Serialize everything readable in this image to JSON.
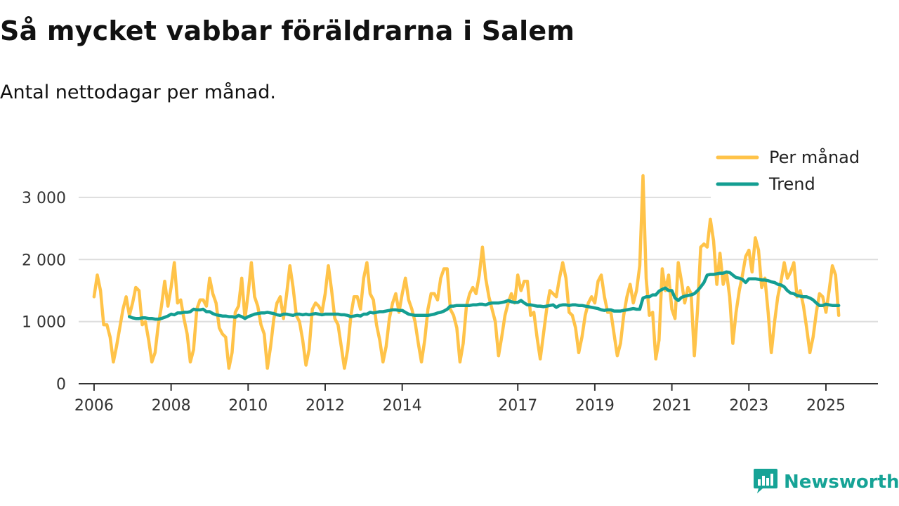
{
  "title": "Så mycket vabbar föräldrarna i Salem",
  "subtitle": "Antal nettodagar per månad.",
  "brand": {
    "name": "Newsworthy",
    "icon": "newsworthy-logo-icon"
  },
  "colors": {
    "monthly": "#FFC349",
    "trend": "#149E92",
    "grid": "#dddddd",
    "axis": "#333333"
  },
  "chart_data": {
    "type": "line",
    "title": "Så mycket vabbar föräldrarna i Salem",
    "subtitle": "Antal nettodagar per månad.",
    "xlabel": "",
    "ylabel": "",
    "xlim": [
      2005.6,
      2026.35
    ],
    "ylim": [
      0,
      3350
    ],
    "grid": true,
    "legend_position": "top-right",
    "x_ticks": [
      {
        "value": 2006,
        "label": "2006"
      },
      {
        "value": 2008,
        "label": "2008"
      },
      {
        "value": 2010,
        "label": "2010"
      },
      {
        "value": 2012,
        "label": "2012"
      },
      {
        "value": 2014,
        "label": "2014"
      },
      {
        "value": 2017,
        "label": "2017"
      },
      {
        "value": 2019,
        "label": "2019"
      },
      {
        "value": 2021,
        "label": "2021"
      },
      {
        "value": 2023,
        "label": "2023"
      },
      {
        "value": 2025,
        "label": "2025"
      }
    ],
    "y_ticks": [
      {
        "value": 0,
        "label": "0"
      },
      {
        "value": 1000,
        "label": "1 000"
      },
      {
        "value": 2000,
        "label": "2 000"
      },
      {
        "value": 3000,
        "label": "3 000"
      }
    ],
    "series": [
      {
        "name": "Per månad",
        "color": "#FFC349",
        "x": [
          2006.0,
          2006.083,
          2006.167,
          2006.25,
          2006.333,
          2006.417,
          2006.5,
          2006.583,
          2006.667,
          2006.75,
          2006.833,
          2006.917,
          2007.0,
          2007.083,
          2007.167,
          2007.25,
          2007.333,
          2007.417,
          2007.5,
          2007.583,
          2007.667,
          2007.75,
          2007.833,
          2007.917,
          2008.0,
          2008.083,
          2008.167,
          2008.25,
          2008.333,
          2008.417,
          2008.5,
          2008.583,
          2008.667,
          2008.75,
          2008.833,
          2008.917,
          2009.0,
          2009.083,
          2009.167,
          2009.25,
          2009.333,
          2009.417,
          2009.5,
          2009.583,
          2009.667,
          2009.75,
          2009.833,
          2009.917,
          2010.0,
          2010.083,
          2010.167,
          2010.25,
          2010.333,
          2010.417,
          2010.5,
          2010.583,
          2010.667,
          2010.75,
          2010.833,
          2010.917,
          2011.0,
          2011.083,
          2011.167,
          2011.25,
          2011.333,
          2011.417,
          2011.5,
          2011.583,
          2011.667,
          2011.75,
          2011.833,
          2011.917,
          2012.0,
          2012.083,
          2012.167,
          2012.25,
          2012.333,
          2012.417,
          2012.5,
          2012.583,
          2012.667,
          2012.75,
          2012.833,
          2012.917,
          2013.0,
          2013.083,
          2013.167,
          2013.25,
          2013.333,
          2013.417,
          2013.5,
          2013.583,
          2013.667,
          2013.75,
          2013.833,
          2013.917,
          2014.0,
          2014.083,
          2014.167,
          2014.25,
          2014.333,
          2014.417,
          2014.5,
          2014.583,
          2014.667,
          2014.75,
          2014.833,
          2014.917,
          2015.0,
          2015.083,
          2015.167,
          2015.25,
          2015.333,
          2015.417,
          2015.5,
          2015.583,
          2015.667,
          2015.75,
          2015.833,
          2015.917,
          2016.0,
          2016.083,
          2016.167,
          2016.25,
          2016.333,
          2016.417,
          2016.5,
          2016.583,
          2016.667,
          2016.75,
          2016.833,
          2016.917,
          2017.0,
          2017.083,
          2017.167,
          2017.25,
          2017.333,
          2017.417,
          2017.5,
          2017.583,
          2017.667,
          2017.75,
          2017.833,
          2017.917,
          2018.0,
          2018.083,
          2018.167,
          2018.25,
          2018.333,
          2018.417,
          2018.5,
          2018.583,
          2018.667,
          2018.75,
          2018.833,
          2018.917,
          2019.0,
          2019.083,
          2019.167,
          2019.25,
          2019.333,
          2019.417,
          2019.5,
          2019.583,
          2019.667,
          2019.75,
          2019.833,
          2019.917,
          2020.0,
          2020.083,
          2020.167,
          2020.25,
          2020.333,
          2020.417,
          2020.5,
          2020.583,
          2020.667,
          2020.75,
          2020.833,
          2020.917,
          2021.0,
          2021.083,
          2021.167,
          2021.25,
          2021.333,
          2021.417,
          2021.5,
          2021.583,
          2021.667,
          2021.75,
          2021.833,
          2021.917,
          2022.0,
          2022.083,
          2022.167,
          2022.25,
          2022.333,
          2022.417,
          2022.5,
          2022.583,
          2022.667,
          2022.75,
          2022.833,
          2022.917,
          2023.0,
          2023.083,
          2023.167,
          2023.25,
          2023.333,
          2023.417,
          2023.5,
          2023.583,
          2023.667,
          2023.75,
          2023.833,
          2023.917,
          2024.0,
          2024.083,
          2024.167,
          2024.25,
          2024.333,
          2024.417,
          2024.5,
          2024.583,
          2024.667,
          2024.75,
          2024.833,
          2024.917,
          2025.0,
          2025.083,
          2025.167,
          2025.25,
          2025.333
        ],
        "values": [
          1400,
          1750,
          1500,
          950,
          950,
          750,
          350,
          600,
          900,
          1200,
          1400,
          1100,
          1300,
          1550,
          1500,
          950,
          1000,
          700,
          350,
          500,
          950,
          1250,
          1650,
          1250,
          1550,
          1950,
          1300,
          1350,
          1050,
          800,
          350,
          550,
          1200,
          1350,
          1350,
          1250,
          1700,
          1450,
          1300,
          900,
          800,
          750,
          250,
          500,
          1150,
          1250,
          1700,
          1050,
          1450,
          1950,
          1400,
          1250,
          950,
          800,
          250,
          600,
          1050,
          1300,
          1400,
          1050,
          1450,
          1900,
          1550,
          1100,
          1000,
          700,
          300,
          550,
          1200,
          1300,
          1250,
          1150,
          1450,
          1900,
          1500,
          1050,
          950,
          600,
          250,
          550,
          1100,
          1400,
          1400,
          1200,
          1700,
          1950,
          1450,
          1350,
          950,
          700,
          350,
          600,
          1050,
          1300,
          1450,
          1150,
          1450,
          1700,
          1350,
          1200,
          1000,
          650,
          350,
          700,
          1200,
          1450,
          1450,
          1350,
          1700,
          1850,
          1850,
          1200,
          1100,
          900,
          350,
          650,
          1250,
          1450,
          1550,
          1450,
          1750,
          2200,
          1700,
          1400,
          1200,
          1000,
          450,
          750,
          1100,
          1300,
          1450,
          1300,
          1750,
          1500,
          1650,
          1650,
          1100,
          1150,
          750,
          400,
          800,
          1200,
          1500,
          1450,
          1400,
          1700,
          1950,
          1700,
          1150,
          1100,
          900,
          500,
          750,
          1100,
          1300,
          1400,
          1300,
          1650,
          1750,
          1400,
          1150,
          1150,
          800,
          450,
          650,
          1100,
          1400,
          1600,
          1300,
          1500,
          1900,
          3350,
          1700,
          1100,
          1150,
          400,
          700,
          1850,
          1500,
          1750,
          1200,
          1050,
          1950,
          1650,
          1300,
          1550,
          1450,
          450,
          1200,
          2200,
          2250,
          2200,
          2650,
          2300,
          1600,
          2100,
          1600,
          1800,
          1400,
          650,
          1150,
          1500,
          1750,
          2050,
          2150,
          1800,
          2350,
          2150,
          1550,
          1700,
          1150,
          500,
          1000,
          1400,
          1650,
          1950,
          1700,
          1800,
          1950,
          1400,
          1500,
          1250,
          900,
          500,
          750,
          1150,
          1450,
          1400,
          1150,
          1500,
          1900,
          1750,
          1100
        ]
      },
      {
        "name": "Trend",
        "color": "#149E92",
        "x": [
          2006.917,
          2007.0,
          2007.083,
          2007.167,
          2007.25,
          2007.333,
          2007.417,
          2007.5,
          2007.583,
          2007.667,
          2007.75,
          2007.833,
          2007.917,
          2008.0,
          2008.083,
          2008.167,
          2008.25,
          2008.333,
          2008.417,
          2008.5,
          2008.583,
          2008.667,
          2008.75,
          2008.833,
          2008.917,
          2009.0,
          2009.083,
          2009.167,
          2009.25,
          2009.333,
          2009.417,
          2009.5,
          2009.583,
          2009.667,
          2009.75,
          2009.833,
          2009.917,
          2010.0,
          2010.083,
          2010.167,
          2010.25,
          2010.333,
          2010.417,
          2010.5,
          2010.583,
          2010.667,
          2010.75,
          2010.833,
          2010.917,
          2011.0,
          2011.083,
          2011.167,
          2011.25,
          2011.333,
          2011.417,
          2011.5,
          2011.583,
          2011.667,
          2011.75,
          2011.833,
          2011.917,
          2012.0,
          2012.083,
          2012.167,
          2012.25,
          2012.333,
          2012.417,
          2012.5,
          2012.583,
          2012.667,
          2012.75,
          2012.833,
          2012.917,
          2013.0,
          2013.083,
          2013.167,
          2013.25,
          2013.333,
          2013.417,
          2013.5,
          2013.583,
          2013.667,
          2013.75,
          2013.833,
          2013.917,
          2014.0,
          2014.083,
          2014.167,
          2014.25,
          2014.333,
          2014.417,
          2014.5,
          2014.583,
          2014.667,
          2014.75,
          2014.833,
          2014.917,
          2015.0,
          2015.083,
          2015.167,
          2015.25,
          2015.333,
          2015.417,
          2015.5,
          2015.583,
          2015.667,
          2015.75,
          2015.833,
          2015.917,
          2016.0,
          2016.083,
          2016.167,
          2016.25,
          2016.333,
          2016.417,
          2016.5,
          2016.583,
          2016.667,
          2016.75,
          2016.833,
          2016.917,
          2017.0,
          2017.083,
          2017.167,
          2017.25,
          2017.333,
          2017.417,
          2017.5,
          2017.583,
          2017.667,
          2017.75,
          2017.833,
          2017.917,
          2018.0,
          2018.083,
          2018.167,
          2018.25,
          2018.333,
          2018.417,
          2018.5,
          2018.583,
          2018.667,
          2018.75,
          2018.833,
          2018.917,
          2019.0,
          2019.083,
          2019.167,
          2019.25,
          2019.333,
          2019.417,
          2019.5,
          2019.583,
          2019.667,
          2019.75,
          2019.833,
          2019.917,
          2020.0,
          2020.083,
          2020.167,
          2020.25,
          2020.333,
          2020.417,
          2020.5,
          2020.583,
          2020.667,
          2020.75,
          2020.833,
          2020.917,
          2021.0,
          2021.083,
          2021.167,
          2021.25,
          2021.333,
          2021.417,
          2021.5,
          2021.583,
          2021.667,
          2021.75,
          2021.833,
          2021.917,
          2022.0,
          2022.083,
          2022.167,
          2022.25,
          2022.333,
          2022.417,
          2022.5,
          2022.583,
          2022.667,
          2022.75,
          2022.833,
          2022.917,
          2023.0,
          2023.083,
          2023.167,
          2023.25,
          2023.333,
          2023.417,
          2023.5,
          2023.583,
          2023.667,
          2023.75,
          2023.833,
          2023.917,
          2024.0,
          2024.083,
          2024.167,
          2024.25,
          2024.333,
          2024.417,
          2024.5,
          2024.583,
          2024.667,
          2024.75,
          2024.833,
          2024.917,
          2025.0,
          2025.083,
          2025.167,
          2025.25,
          2025.333
        ],
        "values": [
          1080,
          1060,
          1050,
          1050,
          1060,
          1060,
          1050,
          1050,
          1040,
          1040,
          1050,
          1070,
          1090,
          1120,
          1110,
          1140,
          1140,
          1150,
          1150,
          1160,
          1200,
          1190,
          1190,
          1200,
          1160,
          1160,
          1130,
          1110,
          1100,
          1090,
          1090,
          1080,
          1080,
          1070,
          1100,
          1080,
          1050,
          1080,
          1100,
          1120,
          1130,
          1140,
          1140,
          1150,
          1140,
          1130,
          1110,
          1100,
          1120,
          1120,
          1110,
          1100,
          1120,
          1120,
          1110,
          1120,
          1110,
          1120,
          1130,
          1120,
          1110,
          1120,
          1120,
          1120,
          1120,
          1120,
          1110,
          1110,
          1100,
          1080,
          1090,
          1100,
          1090,
          1120,
          1120,
          1150,
          1140,
          1150,
          1160,
          1160,
          1170,
          1180,
          1190,
          1190,
          1180,
          1180,
          1150,
          1120,
          1110,
          1100,
          1100,
          1100,
          1100,
          1100,
          1110,
          1120,
          1140,
          1150,
          1170,
          1200,
          1250,
          1250,
          1260,
          1260,
          1260,
          1260,
          1260,
          1270,
          1270,
          1280,
          1280,
          1270,
          1290,
          1300,
          1300,
          1300,
          1310,
          1320,
          1340,
          1320,
          1310,
          1310,
          1340,
          1300,
          1270,
          1270,
          1260,
          1250,
          1250,
          1240,
          1250,
          1260,
          1270,
          1230,
          1260,
          1270,
          1270,
          1260,
          1270,
          1270,
          1260,
          1260,
          1250,
          1240,
          1230,
          1220,
          1210,
          1190,
          1180,
          1190,
          1190,
          1170,
          1170,
          1170,
          1180,
          1190,
          1200,
          1210,
          1200,
          1200,
          1380,
          1400,
          1400,
          1430,
          1430,
          1490,
          1520,
          1540,
          1500,
          1500,
          1380,
          1340,
          1390,
          1410,
          1420,
          1430,
          1450,
          1500,
          1560,
          1630,
          1750,
          1760,
          1760,
          1770,
          1780,
          1780,
          1800,
          1790,
          1750,
          1710,
          1700,
          1680,
          1630,
          1690,
          1690,
          1690,
          1680,
          1670,
          1670,
          1660,
          1640,
          1630,
          1600,
          1590,
          1560,
          1500,
          1460,
          1450,
          1420,
          1410,
          1400,
          1400,
          1380,
          1350,
          1300,
          1260,
          1260,
          1280,
          1270,
          1260,
          1260,
          1260
        ]
      }
    ]
  }
}
